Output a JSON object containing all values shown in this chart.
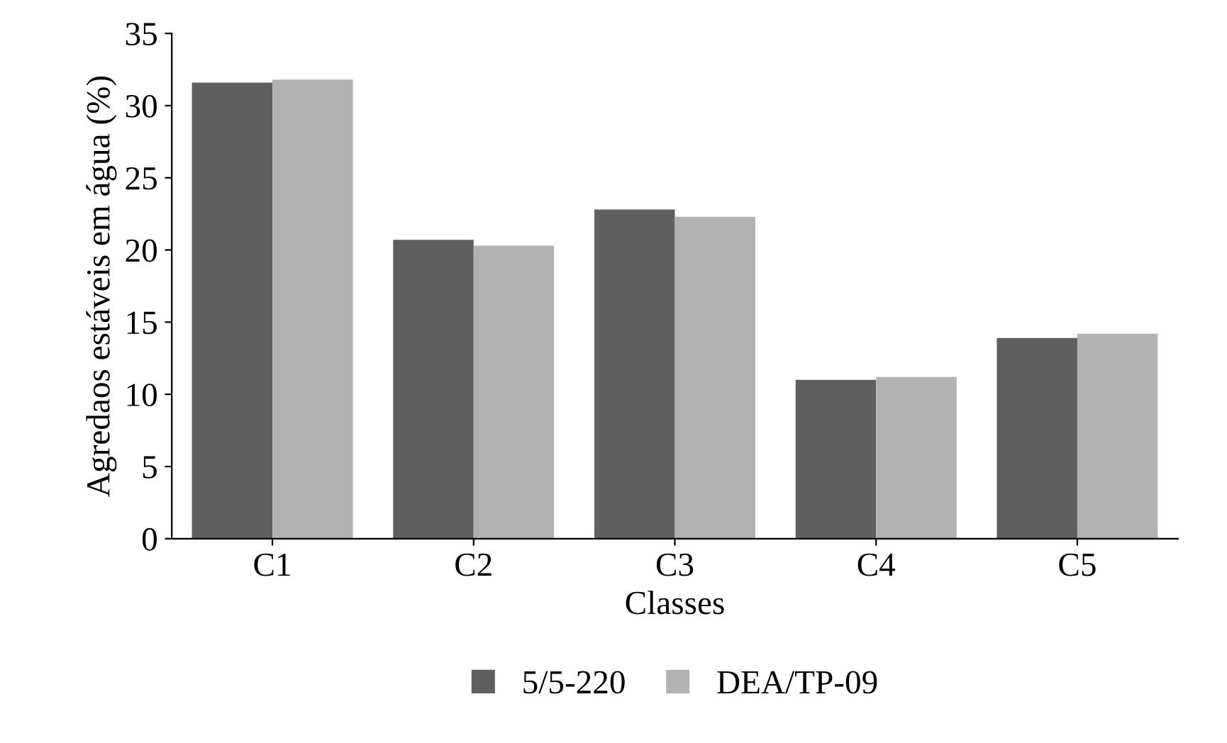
{
  "chart_data": {
    "type": "bar",
    "xlabel": "Classes",
    "ylabel": "Agredaos estáveis em água (%)",
    "categories": [
      "C1",
      "C2",
      "C3",
      "C4",
      "C5"
    ],
    "series": [
      {
        "name": "5/5-220",
        "color": "#5f5f5f",
        "values": [
          31.6,
          20.7,
          22.8,
          11.0,
          13.9
        ]
      },
      {
        "name": "DEA/TP-09",
        "color": "#b2b2b2",
        "values": [
          31.8,
          20.3,
          22.3,
          11.2,
          14.2
        ]
      }
    ],
    "ylim": [
      0,
      35
    ],
    "yticks": [
      0,
      5,
      10,
      15,
      20,
      25,
      30,
      35
    ],
    "grid": false,
    "legend": "bottom"
  }
}
